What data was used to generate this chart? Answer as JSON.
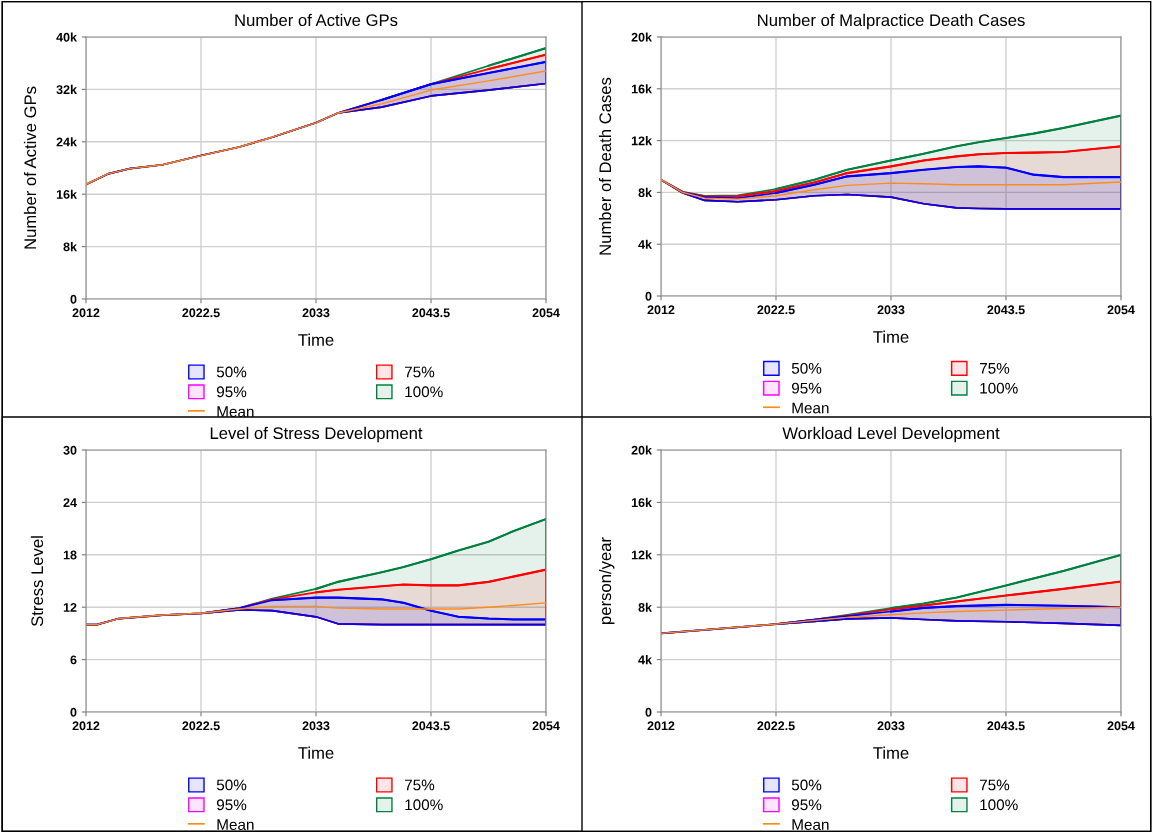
{
  "chart_data": [
    {
      "type": "line",
      "title": "Number of Active GPs",
      "xlabel": "Time",
      "ylabel": "Number of Active GPs",
      "x": [
        2012,
        2014,
        2016,
        2019,
        2022.5,
        2026,
        2029,
        2033,
        2035,
        2039,
        2043.5,
        2048.75,
        2054
      ],
      "xlim": [
        2012,
        2054
      ],
      "xticks": [
        2012,
        2022.5,
        2033,
        2043.5,
        2054
      ],
      "ylim": [
        0,
        40000
      ],
      "yticks": [
        {
          "value": 0,
          "label": "0"
        },
        {
          "value": 8000,
          "label": "8k"
        },
        {
          "value": 16000,
          "label": "16k"
        },
        {
          "value": 24000,
          "label": "24k"
        },
        {
          "value": 32000,
          "label": "32k"
        },
        {
          "value": 40000,
          "label": "40k"
        }
      ],
      "grid": true,
      "legend": "bottom",
      "series": [
        {
          "name": "100%",
          "color": "#008040",
          "values": [
            null,
            null,
            null,
            null,
            null,
            null,
            null,
            null,
            null,
            null,
            null,
            35600,
            38300
          ],
          "lower": [
            17500,
            19100,
            19900,
            20500,
            21900,
            23200,
            24700,
            26900,
            28400,
            29300,
            31000,
            31900,
            32900
          ],
          "upper": [
            17500,
            19100,
            19900,
            20500,
            21900,
            23200,
            24700,
            26900,
            28400,
            30400,
            32800,
            35600,
            38300
          ]
        },
        {
          "name": "95%",
          "color": "#ff00ff",
          "values": [
            null,
            null,
            null,
            null,
            null,
            null,
            null,
            null,
            null,
            null,
            null,
            null,
            null
          ]
        },
        {
          "name": "75%",
          "color": "#ff0000",
          "values": [
            null,
            null,
            null,
            null,
            null,
            null,
            null,
            null,
            null,
            null,
            null,
            35100,
            37300
          ],
          "lower": [
            17500,
            19100,
            19900,
            20500,
            21900,
            23200,
            24700,
            26900,
            28400,
            29300,
            31000,
            31900,
            32900
          ],
          "upper": [
            17500,
            19100,
            19900,
            20500,
            21900,
            23200,
            24700,
            26900,
            28400,
            30400,
            32800,
            35100,
            37300
          ]
        },
        {
          "name": "50%",
          "color": "#0000ff",
          "values": [
            null,
            null,
            null,
            null,
            null,
            null,
            null,
            null,
            null,
            30400,
            32800,
            34500,
            36200
          ],
          "lower": [
            17500,
            19100,
            19900,
            20500,
            21900,
            23200,
            24700,
            26900,
            28400,
            29300,
            31000,
            31900,
            32900
          ],
          "upper": [
            17500,
            19100,
            19900,
            20500,
            21900,
            23200,
            24700,
            26900,
            28400,
            30400,
            32800,
            34500,
            36200
          ]
        },
        {
          "name": "Mean",
          "color": "#ff8c1a",
          "values": [
            17500,
            19100,
            19900,
            20500,
            21900,
            23200,
            24700,
            26900,
            28400,
            29800,
            31900,
            33300,
            34800
          ]
        }
      ]
    },
    {
      "type": "line",
      "title": "Number of Malpractice Death Cases",
      "xlabel": "Time",
      "ylabel": "Number of Death Cases",
      "x": [
        2012,
        2014,
        2016,
        2019,
        2022.5,
        2026,
        2029,
        2033,
        2036,
        2039,
        2041,
        2043.5,
        2046,
        2048.75,
        2054
      ],
      "xlim": [
        2012,
        2054
      ],
      "xticks": [
        2012,
        2022.5,
        2033,
        2043.5,
        2054
      ],
      "ylim": [
        0,
        20000
      ],
      "yticks": [
        {
          "value": 0,
          "label": "0"
        },
        {
          "value": 4000,
          "label": "4k"
        },
        {
          "value": 8000,
          "label": "8k"
        },
        {
          "value": 12000,
          "label": "12k"
        },
        {
          "value": 16000,
          "label": "16k"
        },
        {
          "value": 20000,
          "label": "20k"
        }
      ],
      "grid": true,
      "legend": "bottom",
      "series": [
        {
          "name": "100%",
          "color": "#008040",
          "values": [
            null,
            null,
            null,
            null,
            8260,
            8980,
            9750,
            10470,
            10990,
            11560,
            11870,
            12200,
            12540,
            12980,
            13930
          ],
          "lower": [
            8980,
            7950,
            7380,
            7280,
            7430,
            7740,
            7840,
            7640,
            7120,
            6810,
            6760,
            6730,
            6730,
            6730,
            6730
          ],
          "upper": [
            8980,
            8050,
            7740,
            7770,
            8260,
            8980,
            9750,
            10470,
            10990,
            11560,
            11870,
            12200,
            12540,
            12980,
            13930
          ]
        },
        {
          "name": "95%",
          "color": "#ff00ff",
          "values": [
            null,
            null,
            null,
            null,
            null,
            null,
            null,
            null,
            null,
            null,
            null,
            null,
            null,
            null,
            null
          ]
        },
        {
          "name": "75%",
          "color": "#ff0000",
          "values": [
            null,
            null,
            null,
            7700,
            8100,
            8770,
            9490,
            10010,
            10470,
            10780,
            10940,
            11040,
            11070,
            11120,
            11560
          ],
          "lower": [
            8980,
            7950,
            7380,
            7280,
            7430,
            7740,
            7840,
            7640,
            7120,
            6810,
            6760,
            6730,
            6730,
            6730,
            6730
          ],
          "upper": [
            8980,
            8030,
            7700,
            7700,
            8100,
            8770,
            9490,
            10010,
            10470,
            10780,
            10940,
            11040,
            11070,
            11120,
            11560
          ]
        },
        {
          "name": "50%",
          "color": "#0000ff",
          "values": [
            null,
            null,
            null,
            null,
            7950,
            8590,
            9240,
            9490,
            9750,
            9960,
            10010,
            9910,
            9370,
            9180,
            9180
          ],
          "lower": [
            8980,
            7950,
            7380,
            7280,
            7430,
            7740,
            7840,
            7640,
            7120,
            6810,
            6760,
            6730,
            6730,
            6730,
            6730
          ],
          "upper": [
            8980,
            8000,
            7640,
            7560,
            7950,
            8590,
            9240,
            9490,
            9750,
            9960,
            10010,
            9910,
            9370,
            9180,
            9180
          ]
        },
        {
          "name": "Mean",
          "color": "#ff8c1a",
          "values": [
            8980,
            7990,
            7560,
            7480,
            7740,
            8200,
            8540,
            8720,
            8670,
            8590,
            8590,
            8590,
            8590,
            8590,
            8800
          ]
        }
      ]
    },
    {
      "type": "line",
      "title": "Level of Stress Development",
      "xlabel": "Time",
      "ylabel": "Stress Level",
      "x": [
        2012,
        2013,
        2015,
        2019,
        2022.5,
        2026,
        2029,
        2033,
        2035,
        2039,
        2041,
        2043.5,
        2046,
        2048.75,
        2051,
        2054
      ],
      "xlim": [
        2012,
        2054
      ],
      "xticks": [
        2012,
        2022.5,
        2033,
        2043.5,
        2054
      ],
      "ylim": [
        0,
        30
      ],
      "yticks": [
        0,
        6,
        12,
        18,
        24,
        30
      ],
      "grid": true,
      "legend": "bottom",
      "series": [
        {
          "name": "100%",
          "color": "#008040",
          "values": [
            null,
            null,
            null,
            null,
            null,
            null,
            null,
            14.1,
            14.9,
            16,
            16.6,
            17.5,
            18.5,
            19.5,
            20.7,
            22.1
          ],
          "lower": [
            10,
            10,
            10.7,
            11.1,
            11.3,
            11.7,
            11.6,
            10.9,
            10.1,
            10,
            10,
            10,
            10,
            10,
            10,
            10
          ],
          "upper": [
            10,
            10,
            10.7,
            11.1,
            11.3,
            11.9,
            13,
            14.1,
            14.9,
            16,
            16.6,
            17.5,
            18.5,
            19.5,
            20.7,
            22.1
          ]
        },
        {
          "name": "95%",
          "color": "#ff00ff",
          "values": [
            null,
            null,
            null,
            null,
            null,
            null,
            null,
            null,
            null,
            null,
            null,
            null,
            null,
            null,
            null,
            null
          ]
        },
        {
          "name": "75%",
          "color": "#ff0000",
          "values": [
            null,
            null,
            null,
            null,
            null,
            null,
            null,
            13.7,
            14,
            14.4,
            14.6,
            14.5,
            14.5,
            14.9,
            15.5,
            16.3
          ],
          "lower": [
            10,
            10,
            10.7,
            11.1,
            11.3,
            11.7,
            11.6,
            10.9,
            10.1,
            10,
            10,
            10,
            10,
            10,
            10,
            10
          ],
          "upper": [
            10,
            10,
            10.7,
            11.1,
            11.3,
            11.9,
            12.9,
            13.7,
            14,
            14.4,
            14.6,
            14.5,
            14.5,
            14.9,
            15.5,
            16.3
          ]
        },
        {
          "name": "50%",
          "color": "#0000ff",
          "values": [
            null,
            null,
            null,
            null,
            null,
            null,
            12.8,
            13.1,
            13.1,
            12.9,
            12.5,
            11.6,
            10.9,
            10.7,
            10.6,
            10.6
          ],
          "lower": [
            10,
            10,
            10.7,
            11.1,
            11.3,
            11.7,
            11.6,
            10.9,
            10.1,
            10,
            10,
            10,
            10,
            10,
            10,
            10
          ],
          "upper": [
            10,
            10,
            10.7,
            11.1,
            11.3,
            11.9,
            12.8,
            13.1,
            13.1,
            12.9,
            12.5,
            11.6,
            10.9,
            10.7,
            10.6,
            10.6
          ]
        },
        {
          "name": "Mean",
          "color": "#ff8c1a",
          "values": [
            10,
            10,
            10.7,
            11.1,
            11.3,
            11.8,
            12.1,
            12.1,
            11.9,
            11.8,
            11.8,
            11.8,
            11.8,
            12,
            12.2,
            12.5
          ]
        }
      ]
    },
    {
      "type": "line",
      "title": "Workload Level Development",
      "xlabel": "Time",
      "ylabel": "person/year",
      "x": [
        2012,
        2022.5,
        2026,
        2029,
        2033,
        2036,
        2039,
        2043.5,
        2048.75,
        2054
      ],
      "xlim": [
        2012,
        2054
      ],
      "xticks": [
        2012,
        2022.5,
        2033,
        2043.5,
        2054
      ],
      "ylim": [
        0,
        20000
      ],
      "yticks": [
        {
          "value": 0,
          "label": "0"
        },
        {
          "value": 4000,
          "label": "4k"
        },
        {
          "value": 8000,
          "label": "8k"
        },
        {
          "value": 12000,
          "label": "12k"
        },
        {
          "value": 16000,
          "label": "16k"
        },
        {
          "value": 20000,
          "label": "20k"
        }
      ],
      "grid": true,
      "legend": "bottom",
      "series": [
        {
          "name": "100%",
          "color": "#008040",
          "values": [
            null,
            null,
            null,
            null,
            7930,
            8280,
            8740,
            9660,
            10770,
            11990
          ],
          "lower": [
            6000,
            6710,
            6910,
            7110,
            7190,
            7060,
            6960,
            6890,
            6760,
            6610
          ],
          "upper": [
            6000,
            6710,
            7060,
            7420,
            7930,
            8280,
            8740,
            9660,
            10770,
            11990
          ]
        },
        {
          "name": "95%",
          "color": "#ff00ff",
          "values": [
            null,
            null,
            null,
            null,
            null,
            null,
            null,
            null,
            null,
            null
          ]
        },
        {
          "name": "75%",
          "color": "#ff0000",
          "values": [
            null,
            null,
            null,
            null,
            7830,
            8130,
            8440,
            8890,
            9400,
            9960
          ],
          "lower": [
            6000,
            6710,
            6910,
            7110,
            7190,
            7060,
            6960,
            6890,
            6760,
            6610
          ],
          "upper": [
            6000,
            6710,
            7060,
            7370,
            7830,
            8130,
            8440,
            8890,
            9400,
            9960
          ]
        },
        {
          "name": "50%",
          "color": "#0000ff",
          "values": [
            null,
            null,
            null,
            null,
            7670,
            7950,
            8080,
            8180,
            8110,
            8000
          ],
          "lower": [
            6000,
            6710,
            6910,
            7110,
            7190,
            7060,
            6960,
            6890,
            6760,
            6610
          ],
          "upper": [
            6000,
            6710,
            7060,
            7320,
            7670,
            7950,
            8080,
            8180,
            8110,
            8000
          ]
        },
        {
          "name": "Mean",
          "color": "#ff8c1a",
          "values": [
            6000,
            6710,
            6990,
            7220,
            7420,
            7570,
            7670,
            7780,
            7900,
            8000
          ]
        }
      ]
    }
  ]
}
